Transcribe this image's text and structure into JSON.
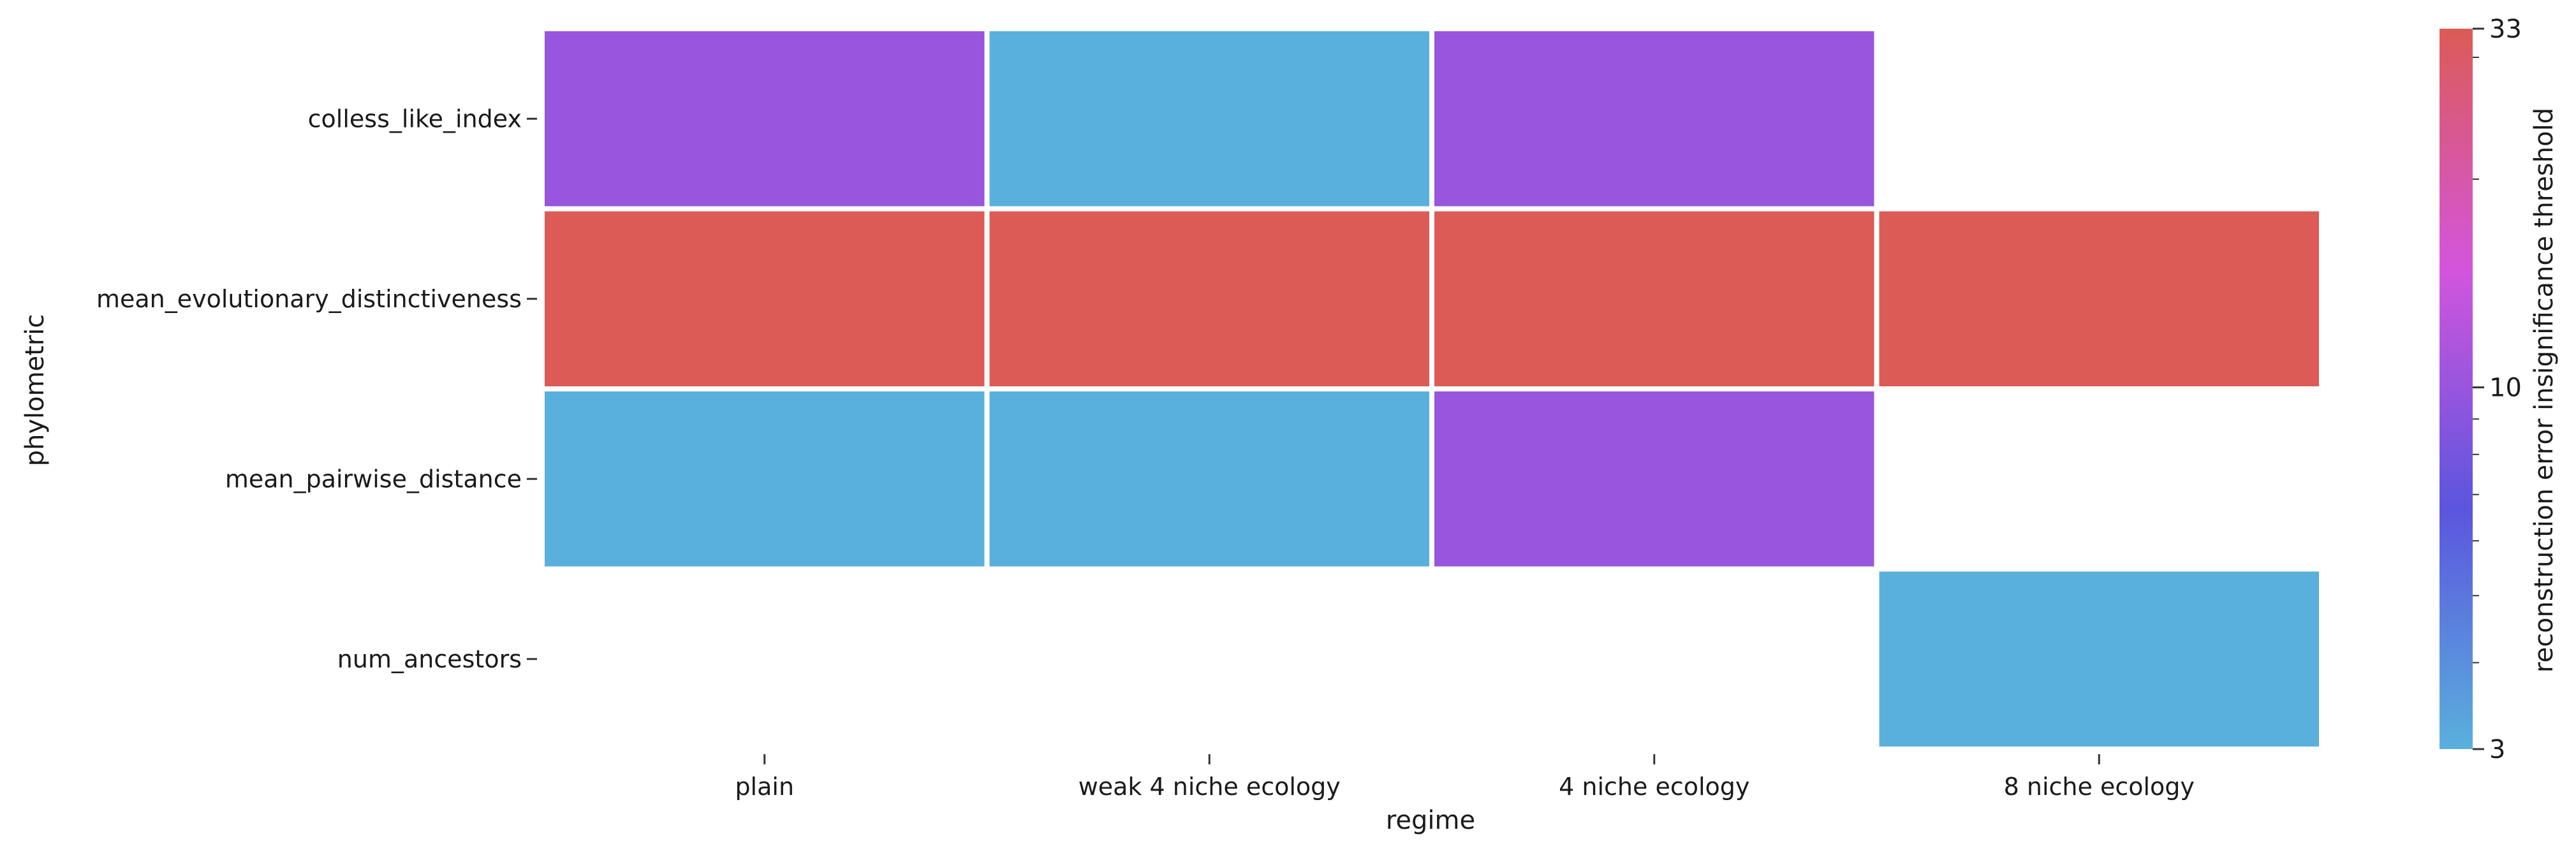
{
  "chart_data": {
    "type": "heatmap",
    "xlabel": "regime",
    "ylabel": "phylometric",
    "x_categories": [
      "plain",
      "weak 4 niche ecology",
      "4 niche ecology",
      "8 niche ecology"
    ],
    "y_categories": [
      "colless_like_index",
      "mean_evolutionary_distinctiveness",
      "mean_pairwise_distance",
      "num_ancestors"
    ],
    "values": [
      [
        10,
        3,
        10,
        null
      ],
      [
        33,
        33,
        33,
        33
      ],
      [
        3,
        3,
        10,
        null
      ],
      [
        null,
        null,
        null,
        3
      ]
    ],
    "colorbar": {
      "label": "reconstruction error insignificance threshold",
      "scale": "log",
      "range": [
        3,
        33
      ],
      "ticks": [
        3,
        10,
        33
      ],
      "tick_labels": [
        "3",
        "10",
        "33"
      ],
      "colors": [
        "#5ab0dc",
        "#5b55de",
        "#d455dd",
        "#dc5b56"
      ]
    },
    "missing_color": "#ffffff",
    "cell_border_color": "#ffffff"
  }
}
